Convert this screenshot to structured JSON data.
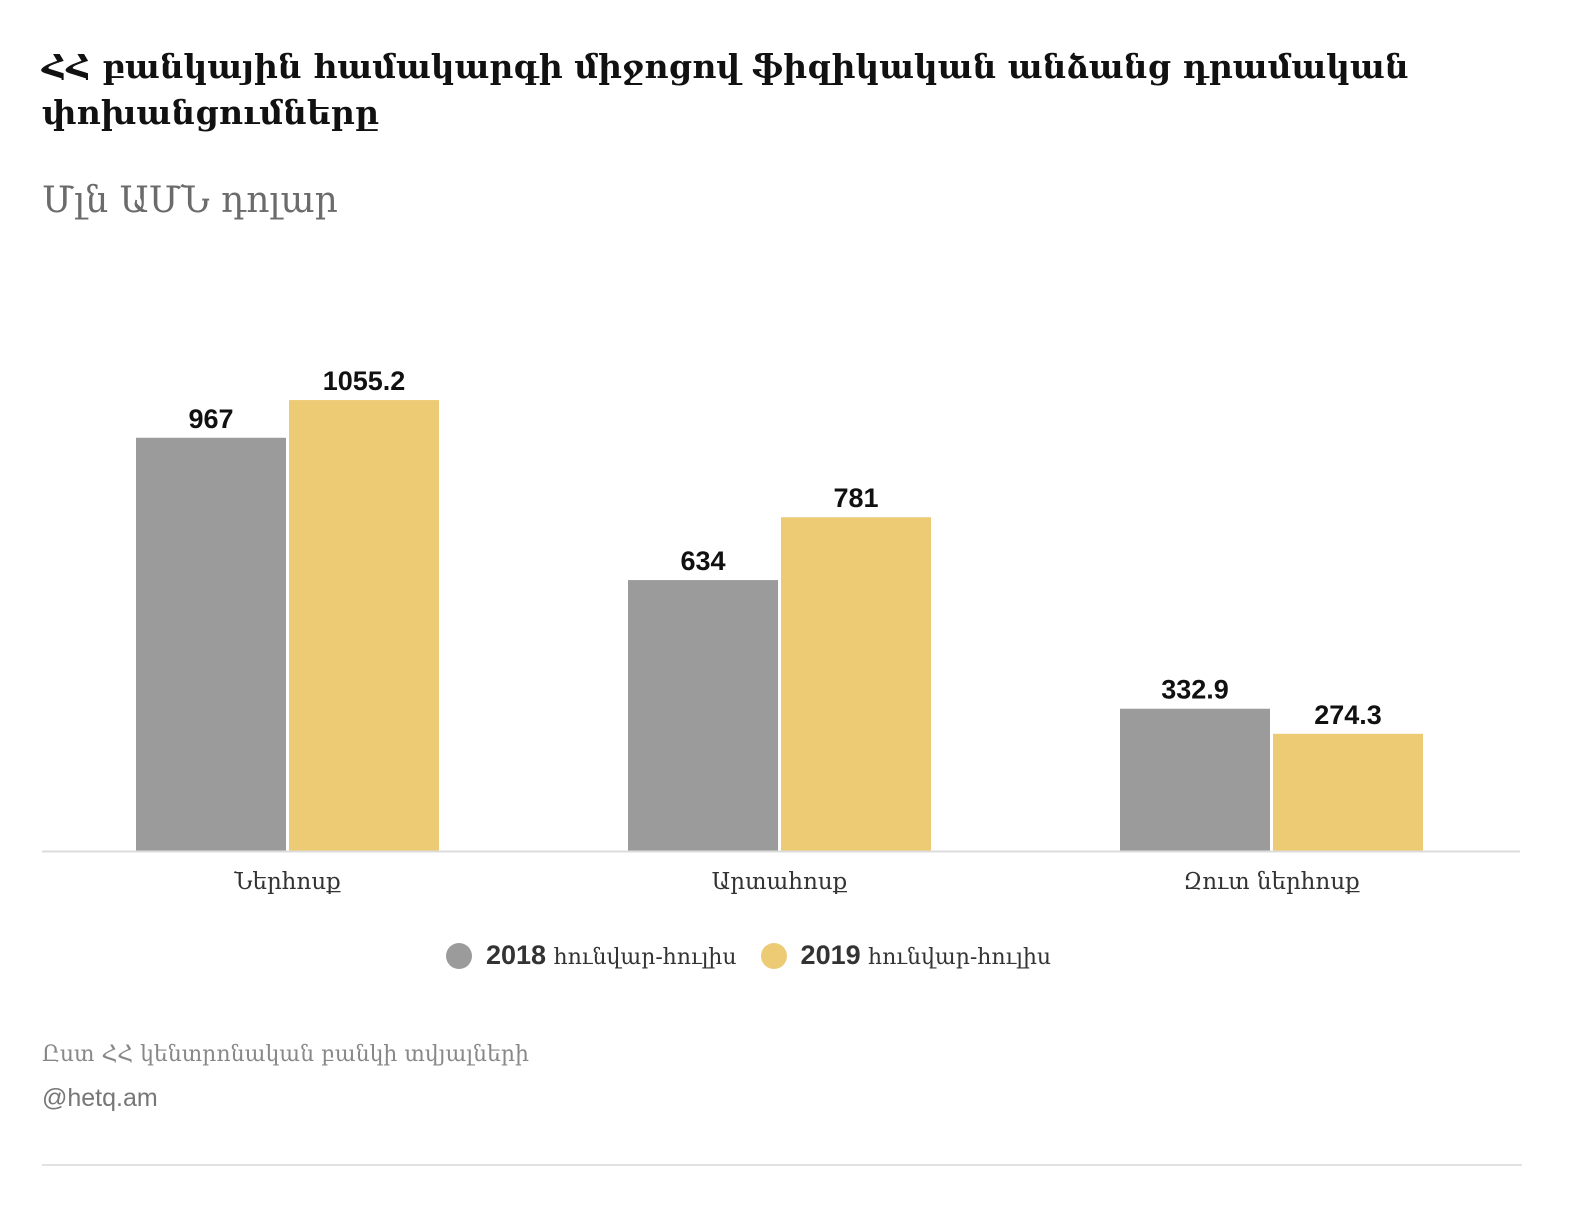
{
  "chart_data": {
    "type": "bar",
    "title": "ՀՀ բանկային համակարգի միջոցով ֆիզիկական անձանց դրամական փոխանցումները",
    "subtitle": "Մլն ԱՄՆ  դոլար",
    "categories": [
      "Ներհոսք",
      "Արտահոսք",
      "Զուտ ներհոսք"
    ],
    "series": [
      {
        "name": "2018 հունվար-հուլիս",
        "year": "2018",
        "period": "հունվար-հուլիս",
        "color": "#9b9b9b",
        "values": [
          967,
          634,
          332.9
        ]
      },
      {
        "name": "2019 հունվար-հուլիս",
        "year": "2019",
        "period": "հունվար-հուլիս",
        "color": "#edcb74",
        "values": [
          1055.2,
          781,
          274.3
        ]
      }
    ],
    "value_labels": [
      [
        "967",
        "634",
        "332.9"
      ],
      [
        "1055.2",
        "781",
        "274.3"
      ]
    ],
    "ylim": [
      0,
      1200
    ],
    "grid": false,
    "legend_position": "bottom"
  },
  "footer": {
    "source": "Ըստ ՀՀ կենտրոնական բանկի տվյալների",
    "credit": "@hetq.am"
  }
}
